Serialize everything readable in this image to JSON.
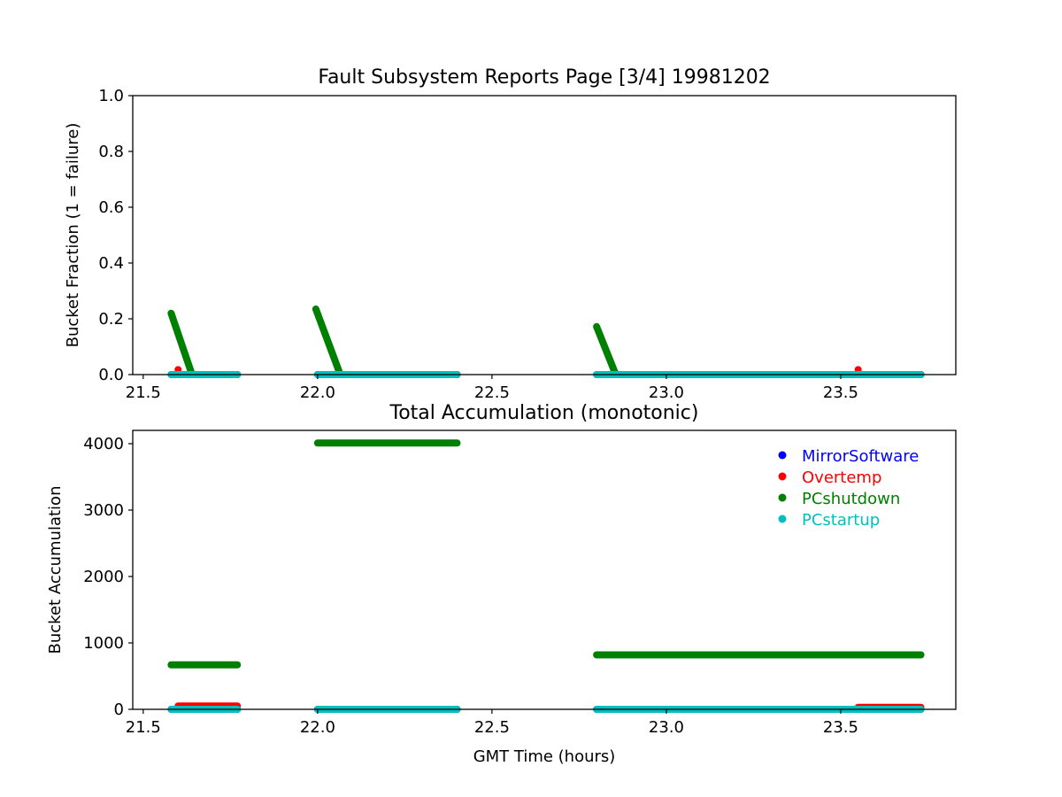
{
  "chart_data": [
    {
      "type": "scatter",
      "title": "Fault Subsystem Reports Page [3/4] 19981202",
      "xlabel": "",
      "ylabel": "Bucket Fraction (1 = failure)",
      "xlim": [
        21.47,
        23.83
      ],
      "ylim": [
        0,
        1.0
      ],
      "xticks": [
        "21.5",
        "22.0",
        "22.5",
        "23.0",
        "23.5"
      ],
      "yticks": [
        "0.0",
        "0.2",
        "0.4",
        "0.6",
        "0.8",
        "1.0"
      ],
      "grid": false,
      "series": [
        {
          "name": "MirrorSoftware",
          "color": "#0000ff",
          "segments": [
            [
              21.58,
              0,
              21.77,
              0
            ],
            [
              22.0,
              0,
              22.4,
              0
            ],
            [
              22.8,
              0,
              23.73,
              0
            ]
          ]
        },
        {
          "name": "Overtemp",
          "color": "#ff0000",
          "segments": [
            [
              21.6,
              0.018,
              21.6,
              0.018
            ],
            [
              23.55,
              0.018,
              23.55,
              0.018
            ]
          ]
        },
        {
          "name": "PCshutdown",
          "color": "#008000",
          "segments": [
            [
              21.58,
              0.22,
              21.64,
              0
            ],
            [
              21.64,
              0,
              21.77,
              0
            ],
            [
              21.995,
              0.235,
              22.065,
              0
            ],
            [
              22.065,
              0,
              22.4,
              0
            ],
            [
              22.8,
              0.172,
              22.855,
              0
            ],
            [
              22.855,
              0,
              23.73,
              0
            ]
          ]
        },
        {
          "name": "PCstartup",
          "color": "#00bfbf",
          "segments": [
            [
              21.58,
              0,
              21.77,
              0
            ],
            [
              22.0,
              0,
              22.4,
              0
            ],
            [
              22.8,
              0,
              23.73,
              0
            ]
          ]
        }
      ]
    },
    {
      "type": "scatter",
      "title": "Total Accumulation (monotonic)",
      "xlabel": "GMT Time (hours)",
      "ylabel": "Bucket Accumulation",
      "xlim": [
        21.47,
        23.83
      ],
      "ylim": [
        0,
        4200
      ],
      "xticks": [
        "21.5",
        "22.0",
        "22.5",
        "23.0",
        "23.5"
      ],
      "yticks": [
        "0",
        "1000",
        "2000",
        "3000",
        "4000"
      ],
      "grid": false,
      "legend_position": "top-right",
      "series": [
        {
          "name": "MirrorSoftware",
          "color": "#0000ff",
          "segments": [
            [
              21.58,
              0,
              21.77,
              0
            ],
            [
              22.0,
              0,
              22.4,
              0
            ],
            [
              22.8,
              0,
              23.73,
              0
            ]
          ]
        },
        {
          "name": "Overtemp",
          "color": "#ff0000",
          "segments": [
            [
              21.6,
              50,
              21.77,
              50
            ],
            [
              23.55,
              30,
              23.73,
              30
            ]
          ]
        },
        {
          "name": "PCshutdown",
          "color": "#008000",
          "segments": [
            [
              21.58,
              670,
              21.77,
              670
            ],
            [
              22.0,
              4010,
              22.4,
              4010
            ],
            [
              22.8,
              820,
              23.73,
              820
            ]
          ]
        },
        {
          "name": "PCstartup",
          "color": "#00bfbf",
          "segments": [
            [
              21.58,
              0,
              21.77,
              0
            ],
            [
              22.0,
              0,
              22.4,
              0
            ],
            [
              22.8,
              0,
              23.73,
              0
            ]
          ]
        }
      ]
    }
  ]
}
